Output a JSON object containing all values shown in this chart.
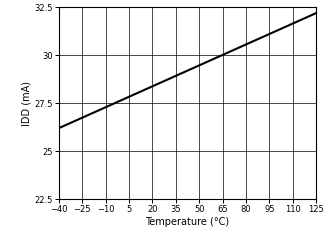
{
  "x_start": -40,
  "x_end": 125,
  "x_ticks": [
    -40,
    -25,
    -10,
    5,
    20,
    35,
    50,
    65,
    80,
    95,
    110,
    125
  ],
  "y_start": 22.5,
  "y_end": 32.5,
  "y_ticks": [
    22.5,
    25,
    27.5,
    30,
    32.5
  ],
  "y_tick_labels": [
    "22.5",
    "25",
    "27.5",
    "30",
    "32.5"
  ],
  "xlabel": "Temperature (°C)",
  "ylabel": "IDD (mA)",
  "line_color": "#000000",
  "line_width": 1.5,
  "background_color": "#ffffff",
  "grid_color": "#000000",
  "data_x": [
    -40,
    125
  ],
  "data_y": [
    26.2,
    32.2
  ]
}
